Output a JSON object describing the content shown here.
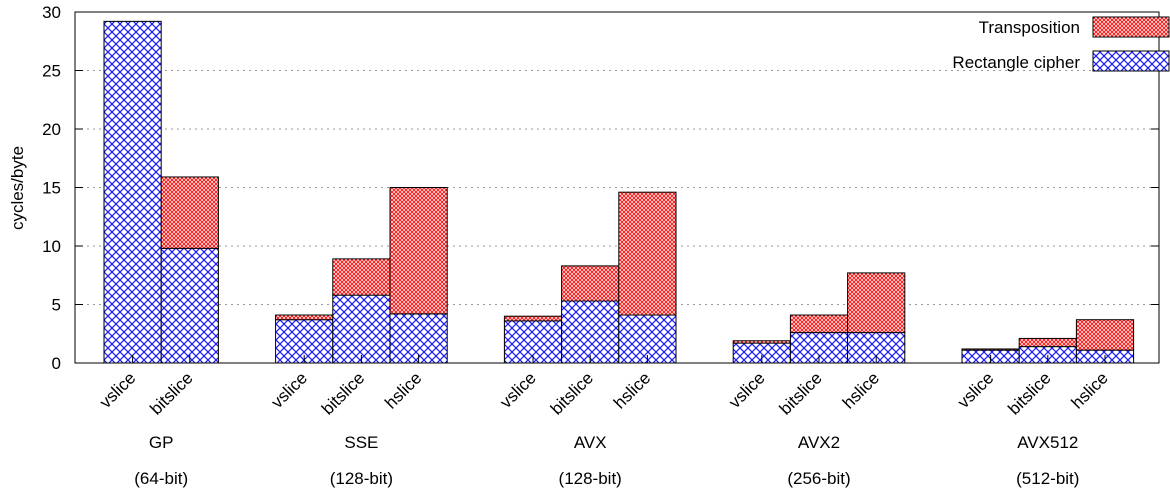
{
  "chart_data": {
    "type": "bar",
    "stacked": true,
    "ylabel": "cycles/byte",
    "ylim": [
      0,
      30
    ],
    "yticks": [
      "0",
      "5",
      "10",
      "15",
      "20",
      "25",
      "30"
    ],
    "grid": "horizontal dashed",
    "legend_position": "top-right",
    "series": [
      {
        "name": "Rectangle cipher",
        "color": "#1a1aff",
        "pattern": "crosshatch-blue",
        "values": [
          29.2,
          9.8,
          3.7,
          5.8,
          4.2,
          3.6,
          5.3,
          4.1,
          1.7,
          2.6,
          2.6,
          1.1,
          1.4,
          1.1
        ]
      },
      {
        "name": "Transposition",
        "color": "#ff1a1a",
        "pattern": "crosshatch-red",
        "values": [
          0.0,
          6.1,
          0.4,
          3.1,
          10.8,
          0.4,
          3.0,
          10.5,
          0.2,
          1.5,
          5.1,
          0.1,
          0.7,
          2.6
        ]
      }
    ],
    "groups": [
      {
        "name": "GP",
        "sub": "(64-bit)",
        "bars": [
          "vslice",
          "bitslice"
        ]
      },
      {
        "name": "SSE",
        "sub": "(128-bit)",
        "bars": [
          "vslice",
          "bitslice",
          "hslice"
        ]
      },
      {
        "name": "AVX",
        "sub": "(128-bit)",
        "bars": [
          "vslice",
          "bitslice",
          "hslice"
        ]
      },
      {
        "name": "AVX2",
        "sub": "(256-bit)",
        "bars": [
          "vslice",
          "bitslice",
          "hslice"
        ]
      },
      {
        "name": "AVX512",
        "sub": "(512-bit)",
        "bars": [
          "vslice",
          "bitslice",
          "hslice"
        ]
      }
    ]
  }
}
